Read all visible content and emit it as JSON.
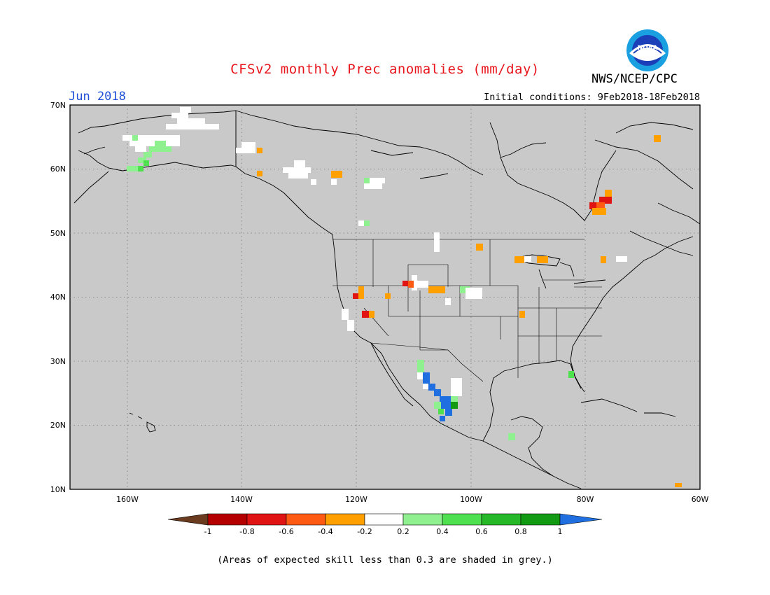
{
  "header": {
    "title": "CFSv2 monthly Prec anomalies (mm/day)",
    "agency": "NWS/NCEP/CPC",
    "logo_text": "NOAA",
    "month": "Jun 2018",
    "initial_conditions": "Initial conditions: 9Feb2018-18Feb2018"
  },
  "axes": {
    "lat_labels": [
      "70N",
      "60N",
      "50N",
      "40N",
      "30N",
      "20N",
      "10N"
    ],
    "lon_labels": [
      "160W",
      "140W",
      "120W",
      "100W",
      "80W",
      "60W"
    ]
  },
  "legend": {
    "labels": [
      "-1",
      "-0.8",
      "-0.6",
      "-0.4",
      "-0.2",
      "0.2",
      "0.4",
      "0.6",
      "0.8",
      "1"
    ],
    "colors": [
      "#6b3b1f",
      "#b50000",
      "#e11414",
      "#ff5a14",
      "#ffa000",
      "#ffffff",
      "#8ff08f",
      "#4ee04e",
      "#27b827",
      "#139a13",
      "#1f6fe0"
    ]
  },
  "footnote": "(Areas of expected skill less than 0.3 are shaded in grey.)",
  "colors": {
    "land_grey": "#c9c9c9",
    "title_red": "#e8141b",
    "month_blue": "#1f4fd8"
  }
}
